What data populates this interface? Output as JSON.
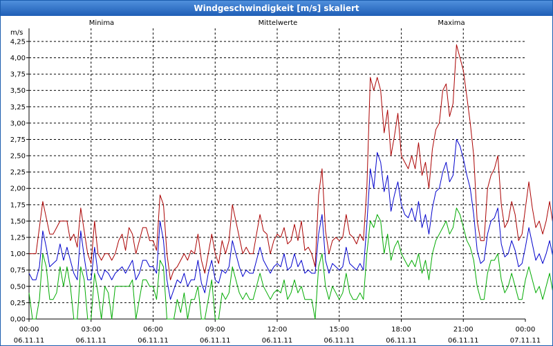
{
  "window": {
    "title": "Windgeschwindigkeit [m/s] skaliert"
  },
  "colors": {
    "minima": "#00aa00",
    "mittelwerte": "#0000cc",
    "maxima": "#aa0000",
    "grid": "#000000",
    "titlebar": "#2a6cc6"
  },
  "chart_data": {
    "type": "line",
    "title": "Windgeschwindigkeit [m/s] skaliert",
    "ylabel": "m/s",
    "xlabel": "",
    "ylim": [
      0,
      4.45
    ],
    "xlim": [
      0,
      24
    ],
    "grid": true,
    "legend": [
      "Minima",
      "Mittelwerte",
      "Maxima"
    ],
    "y_ticks": [
      "0,00",
      "0,25",
      "0,50",
      "0,75",
      "1,00",
      "1,25",
      "1,50",
      "1,75",
      "2,00",
      "2,25",
      "2,50",
      "2,75",
      "3,00",
      "3,25",
      "3,50",
      "3,75",
      "4,00",
      "4,25"
    ],
    "x_ticks": [
      {
        "time": "00:00",
        "date": "06.11.11"
      },
      {
        "time": "03:00",
        "date": "06.11.11"
      },
      {
        "time": "06:00",
        "date": "06.11.11"
      },
      {
        "time": "09:00",
        "date": "06.11.11"
      },
      {
        "time": "12:00",
        "date": "06.11.11"
      },
      {
        "time": "15:00",
        "date": "06.11.11"
      },
      {
        "time": "18:00",
        "date": "06.11.11"
      },
      {
        "time": "21:00",
        "date": "06.11.11"
      },
      {
        "time": "00:00",
        "date": "07.11.11"
      }
    ],
    "x_interval_hours": 0.1667,
    "series": [
      {
        "name": "Maxima",
        "color_key": "maxima",
        "values": [
          1.0,
          1.0,
          1.0,
          1.4,
          1.8,
          1.55,
          1.3,
          1.3,
          1.4,
          1.5,
          1.5,
          1.5,
          1.2,
          1.3,
          1.1,
          1.7,
          1.35,
          1.0,
          0.85,
          1.5,
          1.0,
          0.9,
          1.0,
          1.0,
          0.9,
          1.0,
          1.2,
          1.3,
          1.05,
          1.4,
          1.3,
          1.0,
          1.2,
          1.4,
          1.4,
          1.2,
          1.2,
          1.05,
          1.9,
          1.75,
          1.0,
          0.6,
          0.75,
          0.8,
          0.9,
          1.0,
          0.9,
          1.05,
          1.0,
          1.3,
          0.9,
          0.7,
          1.0,
          1.3,
          1.0,
          0.85,
          1.2,
          1.0,
          1.2,
          1.75,
          1.5,
          1.25,
          1.0,
          1.1,
          1.0,
          1.0,
          1.3,
          1.6,
          1.35,
          1.3,
          1.0,
          1.2,
          1.3,
          1.25,
          1.4,
          1.15,
          1.2,
          1.45,
          1.2,
          1.5,
          1.05,
          1.1,
          1.0,
          0.8,
          1.9,
          2.3,
          1.35,
          1.0,
          1.2,
          1.25,
          1.2,
          1.25,
          1.6,
          1.3,
          1.25,
          1.15,
          1.3,
          1.2,
          2.0,
          3.7,
          3.5,
          3.7,
          3.5,
          2.85,
          3.2,
          2.5,
          2.8,
          3.15,
          2.5,
          2.4,
          2.3,
          2.5,
          2.3,
          2.7,
          2.2,
          2.4,
          2.0,
          2.6,
          2.9,
          3.0,
          3.5,
          3.6,
          3.1,
          3.3,
          4.2,
          4.0,
          3.8,
          3.4,
          3.0,
          2.5,
          1.5,
          1.2,
          1.2,
          2.0,
          2.2,
          2.3,
          2.5,
          1.75,
          1.4,
          1.5,
          1.8,
          1.6,
          1.2,
          1.3,
          1.7,
          2.1,
          1.7,
          1.4,
          1.5,
          1.3,
          1.5,
          1.8,
          1.45,
          1.4,
          1.4,
          1.5,
          1.8,
          1.75,
          1.6,
          1.3,
          1.0,
          0.7,
          1.3,
          0.9,
          1.0,
          1.0,
          1.0,
          1.0,
          1.0,
          1.1,
          1.0,
          1.0,
          1.2,
          1.0,
          1.3,
          1.0,
          1.1,
          1.0,
          1.25,
          1.0,
          1.0,
          1.2,
          1.1,
          1.0,
          1.25,
          1.0,
          1.2,
          0.9,
          1.05,
          1.0
        ]
      },
      {
        "name": "Mittelwerte",
        "color_key": "mittelwerte",
        "values": [
          0.7,
          0.6,
          0.6,
          0.8,
          1.35,
          1.1,
          0.8,
          0.85,
          0.9,
          1.15,
          0.9,
          1.1,
          0.9,
          0.7,
          0.6,
          1.35,
          0.95,
          0.6,
          0.6,
          1.1,
          0.7,
          0.6,
          0.75,
          0.7,
          0.6,
          0.7,
          0.75,
          0.8,
          0.7,
          0.8,
          0.9,
          0.6,
          0.7,
          0.9,
          0.9,
          0.8,
          0.8,
          0.7,
          1.5,
          1.2,
          0.6,
          0.3,
          0.45,
          0.6,
          0.55,
          0.7,
          0.5,
          0.6,
          0.6,
          0.9,
          0.55,
          0.4,
          0.7,
          0.9,
          0.6,
          0.55,
          0.75,
          0.7,
          0.8,
          1.2,
          1.0,
          0.8,
          0.65,
          0.75,
          0.7,
          0.7,
          0.9,
          1.1,
          0.9,
          0.8,
          0.7,
          0.8,
          0.85,
          0.8,
          1.0,
          0.75,
          0.8,
          1.0,
          0.8,
          0.9,
          0.7,
          0.75,
          0.7,
          0.7,
          1.3,
          1.6,
          0.9,
          0.7,
          0.85,
          0.8,
          0.75,
          0.8,
          1.1,
          0.85,
          0.8,
          0.75,
          0.85,
          0.75,
          1.45,
          2.3,
          2.0,
          2.55,
          2.4,
          1.95,
          2.2,
          1.65,
          1.9,
          2.1,
          1.75,
          1.6,
          1.55,
          1.7,
          1.5,
          1.8,
          1.4,
          1.6,
          1.3,
          1.7,
          1.95,
          2.0,
          2.25,
          2.4,
          2.1,
          2.2,
          2.75,
          2.65,
          2.45,
          2.2,
          2.0,
          1.6,
          1.05,
          0.85,
          0.9,
          1.3,
          1.5,
          1.55,
          1.7,
          1.15,
          0.95,
          1.0,
          1.2,
          1.05,
          0.8,
          0.85,
          1.1,
          1.4,
          1.15,
          0.9,
          1.0,
          0.85,
          1.0,
          1.2,
          0.95,
          0.9,
          0.9,
          1.0,
          1.2,
          1.15,
          1.05,
          0.85,
          0.65,
          0.45,
          0.8,
          0.55,
          0.6,
          0.6,
          0.55,
          0.6,
          0.55,
          0.65,
          0.55,
          0.6,
          0.7,
          0.55,
          0.75,
          0.6,
          0.65,
          0.6,
          0.8,
          0.6,
          0.55,
          0.7,
          0.65,
          0.55,
          0.75,
          0.55,
          0.7,
          0.5,
          0.85,
          0.65,
          0.75
        ]
      },
      {
        "name": "Minima",
        "color_key": "minima",
        "values": [
          0.4,
          0.0,
          0.0,
          0.3,
          1.0,
          0.8,
          0.3,
          0.3,
          0.4,
          0.8,
          0.5,
          0.8,
          0.5,
          0.0,
          0.0,
          0.8,
          0.6,
          0.0,
          0.0,
          0.7,
          0.4,
          0.0,
          0.5,
          0.4,
          0.0,
          0.5,
          0.5,
          0.5,
          0.5,
          0.5,
          0.6,
          0.0,
          0.3,
          0.6,
          0.6,
          0.5,
          0.5,
          0.3,
          0.9,
          0.8,
          0.0,
          0.0,
          0.0,
          0.3,
          0.1,
          0.4,
          0.0,
          0.3,
          0.3,
          0.5,
          0.0,
          0.0,
          0.3,
          0.6,
          0.0,
          0.0,
          0.4,
          0.3,
          0.4,
          0.8,
          0.6,
          0.4,
          0.3,
          0.4,
          0.3,
          0.3,
          0.5,
          0.7,
          0.5,
          0.4,
          0.3,
          0.4,
          0.45,
          0.4,
          0.6,
          0.3,
          0.4,
          0.6,
          0.4,
          0.5,
          0.3,
          0.3,
          0.3,
          0.0,
          0.8,
          1.0,
          0.5,
          0.3,
          0.5,
          0.4,
          0.3,
          0.4,
          0.7,
          0.4,
          0.3,
          0.3,
          0.4,
          0.3,
          1.0,
          1.5,
          1.4,
          1.6,
          1.5,
          1.0,
          1.3,
          0.9,
          1.1,
          1.2,
          1.0,
          0.9,
          0.8,
          0.9,
          0.8,
          1.0,
          0.7,
          0.9,
          0.6,
          1.0,
          1.2,
          1.3,
          1.4,
          1.5,
          1.3,
          1.4,
          1.7,
          1.6,
          1.4,
          1.2,
          1.1,
          0.9,
          0.5,
          0.3,
          0.3,
          0.7,
          0.9,
          0.9,
          1.0,
          0.6,
          0.4,
          0.5,
          0.7,
          0.5,
          0.3,
          0.3,
          0.6,
          0.8,
          0.6,
          0.4,
          0.5,
          0.3,
          0.5,
          0.7,
          0.4,
          0.3,
          0.3,
          0.5,
          0.7,
          0.6,
          0.5,
          0.3,
          0.0,
          0.0,
          0.3,
          0.0,
          0.0,
          0.0,
          0.0,
          0.0,
          0.0,
          0.0,
          0.0,
          0.0,
          0.0,
          0.0,
          0.3,
          0.0,
          0.0,
          0.0,
          0.5,
          0.0,
          0.0,
          0.0,
          0.0,
          0.0,
          0.5,
          0.0,
          0.3,
          0.0,
          0.5,
          0.3,
          0.4
        ]
      }
    ]
  }
}
